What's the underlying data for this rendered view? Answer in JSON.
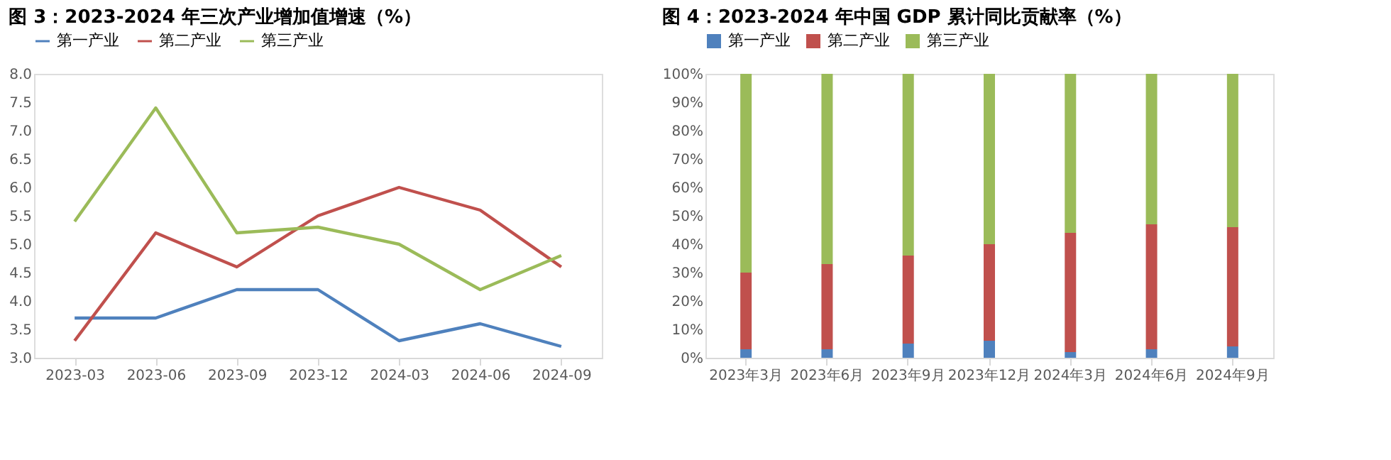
{
  "chart_data": [
    {
      "type": "line",
      "title": "图 3：2023-2024 年三次产业增加值增速（%）",
      "categories": [
        "2023-03",
        "2023-06",
        "2023-09",
        "2023-12",
        "2024-03",
        "2024-06",
        "2024-09"
      ],
      "series": [
        {
          "name": "第一产业",
          "color": "#4f81bd",
          "values": [
            3.7,
            3.7,
            4.2,
            4.2,
            3.3,
            3.6,
            3.2
          ]
        },
        {
          "name": "第二产业",
          "color": "#c0504d",
          "values": [
            3.3,
            5.2,
            4.6,
            5.5,
            6.0,
            5.6,
            4.6
          ]
        },
        {
          "name": "第三产业",
          "color": "#9bbb59",
          "values": [
            5.4,
            7.4,
            5.2,
            5.3,
            5.0,
            4.2,
            4.8
          ]
        }
      ],
      "ylim": [
        3.0,
        8.0
      ],
      "yticks": [
        {
          "value": 3.0,
          "label": "3.0"
        },
        {
          "value": 3.5,
          "label": "3.5"
        },
        {
          "value": 4.0,
          "label": "4.0"
        },
        {
          "value": 4.5,
          "label": "4.5"
        },
        {
          "value": 5.0,
          "label": "5.0"
        },
        {
          "value": 5.5,
          "label": "5.5"
        },
        {
          "value": 6.0,
          "label": "6.0"
        },
        {
          "value": 6.5,
          "label": "6.5"
        },
        {
          "value": 7.0,
          "label": "7.0"
        },
        {
          "value": 7.5,
          "label": "7.5"
        },
        {
          "value": 8.0,
          "label": "8.0"
        }
      ],
      "grid": false,
      "legend": "top",
      "line_style": "solid",
      "marker": "none"
    },
    {
      "type": "bar",
      "title": "图 4：2023-2024 年中国 GDP 累计同比贡献率（%）",
      "categories": [
        "2023年3月",
        "2023年6月",
        "2023年9月",
        "2023年12月",
        "2024年3月",
        "2024年6月",
        "2024年9月"
      ],
      "stacked": true,
      "series": [
        {
          "name": "第一产业",
          "color": "#4f81bd",
          "values": [
            3,
            3,
            5,
            6,
            2,
            3,
            4
          ]
        },
        {
          "name": "第二产业",
          "color": "#c0504d",
          "values": [
            27,
            30,
            31,
            34,
            42,
            44,
            42
          ]
        },
        {
          "name": "第三产业",
          "color": "#9bbb59",
          "values": [
            70,
            67,
            64,
            60,
            56,
            53,
            54
          ]
        }
      ],
      "ylim": [
        0,
        100
      ],
      "yticks": [
        {
          "value": 0,
          "label": "0%"
        },
        {
          "value": 10,
          "label": "10%"
        },
        {
          "value": 20,
          "label": "20%"
        },
        {
          "value": 30,
          "label": "30%"
        },
        {
          "value": 40,
          "label": "40%"
        },
        {
          "value": 50,
          "label": "50%"
        },
        {
          "value": 60,
          "label": "60%"
        },
        {
          "value": 70,
          "label": "70%"
        },
        {
          "value": 80,
          "label": "80%"
        },
        {
          "value": 90,
          "label": "90%"
        },
        {
          "value": 100,
          "label": "100%"
        }
      ],
      "grid": false,
      "legend": "top"
    }
  ]
}
